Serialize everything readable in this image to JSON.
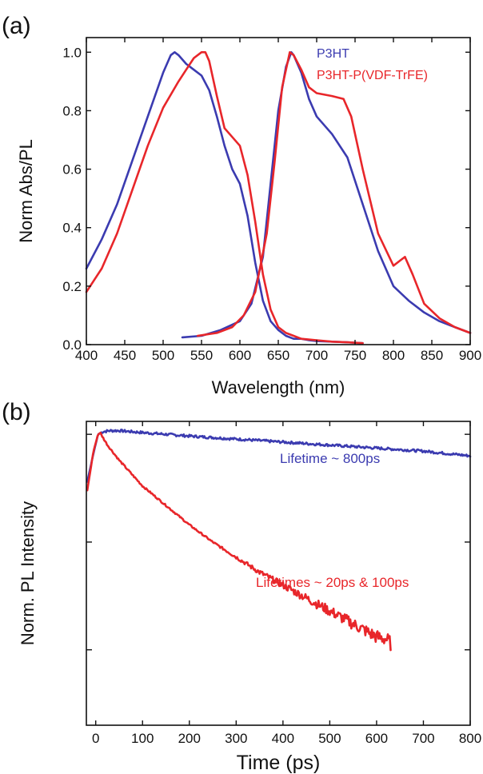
{
  "colors": {
    "blue": "#3b3bb0",
    "red": "#e8262a",
    "axis": "#111111"
  },
  "chart_data": [
    {
      "panel": "(a)",
      "type": "line",
      "xlabel": "Wavelength (nm)",
      "ylabel": "Norm Abs/PL",
      "xlim": [
        400,
        900
      ],
      "ylim": [
        0.0,
        1.05
      ],
      "xticks": [
        "400",
        "450",
        "500",
        "550",
        "600",
        "650",
        "700",
        "750",
        "800",
        "850",
        "900"
      ],
      "yticks": [
        "0.0",
        "0.2",
        "0.4",
        "0.6",
        "0.8",
        "1.0"
      ],
      "legend": {
        "position": "top-right",
        "entries": [
          "P3HT",
          "P3HT-P(VDF-TrFE)"
        ]
      },
      "series": [
        {
          "name": "P3HT",
          "role": "absorption",
          "color": "#3b3bb0",
          "x": [
            400,
            420,
            440,
            460,
            480,
            500,
            510,
            515,
            520,
            530,
            540,
            550,
            560,
            570,
            580,
            590,
            600,
            610,
            620,
            630,
            640,
            650,
            660,
            670,
            680,
            690,
            700,
            720,
            740,
            760
          ],
          "y": [
            0.26,
            0.36,
            0.48,
            0.63,
            0.78,
            0.93,
            0.99,
            1.0,
            0.99,
            0.96,
            0.94,
            0.92,
            0.87,
            0.78,
            0.68,
            0.6,
            0.55,
            0.44,
            0.28,
            0.15,
            0.08,
            0.05,
            0.03,
            0.02,
            0.02,
            0.015,
            0.012,
            0.01,
            0.008,
            0.005
          ]
        },
        {
          "name": "P3HT",
          "role": "photoluminescence",
          "color": "#3b3bb0",
          "x": [
            525,
            550,
            575,
            600,
            615,
            630,
            640,
            650,
            660,
            667,
            670,
            680,
            690,
            700,
            720,
            740,
            760,
            780,
            800,
            820,
            840,
            860,
            880,
            900
          ],
          "y": [
            0.025,
            0.03,
            0.05,
            0.08,
            0.14,
            0.3,
            0.55,
            0.8,
            0.95,
            1.0,
            0.99,
            0.93,
            0.84,
            0.78,
            0.72,
            0.64,
            0.48,
            0.32,
            0.2,
            0.15,
            0.11,
            0.08,
            0.06,
            0.04
          ]
        },
        {
          "name": "P3HT-P(VDF-TrFE)",
          "role": "absorption",
          "color": "#e8262a",
          "x": [
            400,
            420,
            440,
            460,
            480,
            500,
            520,
            530,
            540,
            550,
            555,
            560,
            570,
            580,
            590,
            600,
            610,
            620,
            630,
            640,
            650,
            660,
            670,
            680,
            700,
            720,
            740,
            760
          ],
          "y": [
            0.18,
            0.26,
            0.38,
            0.53,
            0.68,
            0.81,
            0.9,
            0.94,
            0.98,
            1.0,
            1.0,
            0.97,
            0.85,
            0.74,
            0.71,
            0.68,
            0.58,
            0.42,
            0.24,
            0.12,
            0.06,
            0.04,
            0.03,
            0.02,
            0.015,
            0.01,
            0.008,
            0.005
          ]
        },
        {
          "name": "P3HT-P(VDF-TrFE)",
          "role": "photoluminescence",
          "color": "#e8262a",
          "x": [
            545,
            570,
            590,
            605,
            620,
            635,
            645,
            655,
            665,
            670,
            680,
            690,
            700,
            720,
            735,
            745,
            760,
            780,
            800,
            810,
            815,
            825,
            840,
            860,
            880,
            900
          ],
          "y": [
            0.03,
            0.04,
            0.06,
            0.1,
            0.18,
            0.38,
            0.62,
            0.88,
            1.0,
            0.99,
            0.94,
            0.88,
            0.86,
            0.85,
            0.84,
            0.78,
            0.6,
            0.38,
            0.27,
            0.29,
            0.3,
            0.24,
            0.14,
            0.09,
            0.06,
            0.04
          ]
        }
      ]
    },
    {
      "panel": "(b)",
      "type": "line",
      "xlabel": "Time (ps)",
      "ylabel": "Norm. PL Intensity",
      "yscale": "log",
      "xlim": [
        -20,
        800
      ],
      "ylim_decades_below_peak": [
        -1.35,
        0.06
      ],
      "xticks": [
        "0",
        "100",
        "200",
        "300",
        "400",
        "500",
        "600",
        "700",
        "800"
      ],
      "annotations": [
        {
          "text": "Lifetime ~ 800ps",
          "color": "#3b3bb0"
        },
        {
          "text": "Lifetimes ~ 20ps & 100ps",
          "color": "#e8262a"
        }
      ],
      "series": [
        {
          "name": "Lifetime ~ 800ps",
          "color": "#3b3bb0",
          "x": [
            -18,
            -5,
            5,
            15,
            30,
            50,
            100,
            150,
            200,
            300,
            400,
            500,
            600,
            700,
            800
          ],
          "y_log10": [
            -0.22,
            -0.09,
            0.0,
            0.012,
            0.017,
            0.017,
            0.008,
            0.0,
            -0.008,
            -0.022,
            -0.036,
            -0.05,
            -0.064,
            -0.078,
            -0.1
          ]
        },
        {
          "name": "Lifetimes ~ 20ps & 100ps",
          "color": "#e8262a",
          "x": [
            -18,
            -5,
            5,
            10,
            25,
            50,
            75,
            100,
            150,
            200,
            250,
            300,
            350,
            400,
            450,
            500,
            550,
            600,
            620,
            630
          ],
          "y_log10": [
            -0.26,
            -0.08,
            0.0,
            0.005,
            -0.05,
            -0.12,
            -0.18,
            -0.24,
            -0.33,
            -0.42,
            -0.5,
            -0.57,
            -0.64,
            -0.7,
            -0.76,
            -0.82,
            -0.88,
            -0.94,
            -0.95,
            -0.97
          ]
        }
      ]
    }
  ]
}
